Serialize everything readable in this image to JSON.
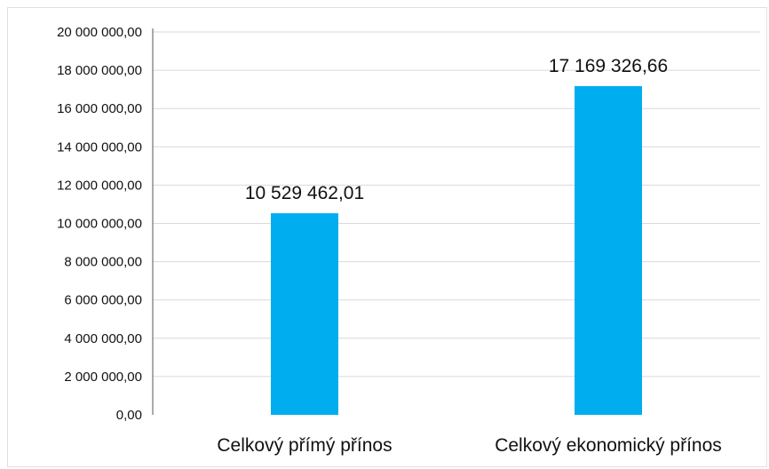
{
  "chart_data": {
    "type": "bar",
    "categories": [
      "Celkový přímý přínos",
      "Celkový ekonomický přínos"
    ],
    "values": [
      10529462.01,
      17169326.66
    ],
    "data_labels": [
      "10 529 462,01",
      "17 169 326,66"
    ],
    "y_tick_labels": [
      "0,00",
      "2 000 000,00",
      "4 000 000,00",
      "6 000 000,00",
      "8 000 000,00",
      "10 000 000,00",
      "12 000 000,00",
      "14 000 000,00",
      "16 000 000,00",
      "18 000 000,00",
      "20 000 000,00"
    ],
    "ylim": [
      0,
      20000000
    ],
    "y_step": 2000000,
    "grid": true,
    "bar_color": "#00adef",
    "grid_color": "#d9d9d9",
    "title": "",
    "xlabel": "",
    "ylabel": ""
  }
}
